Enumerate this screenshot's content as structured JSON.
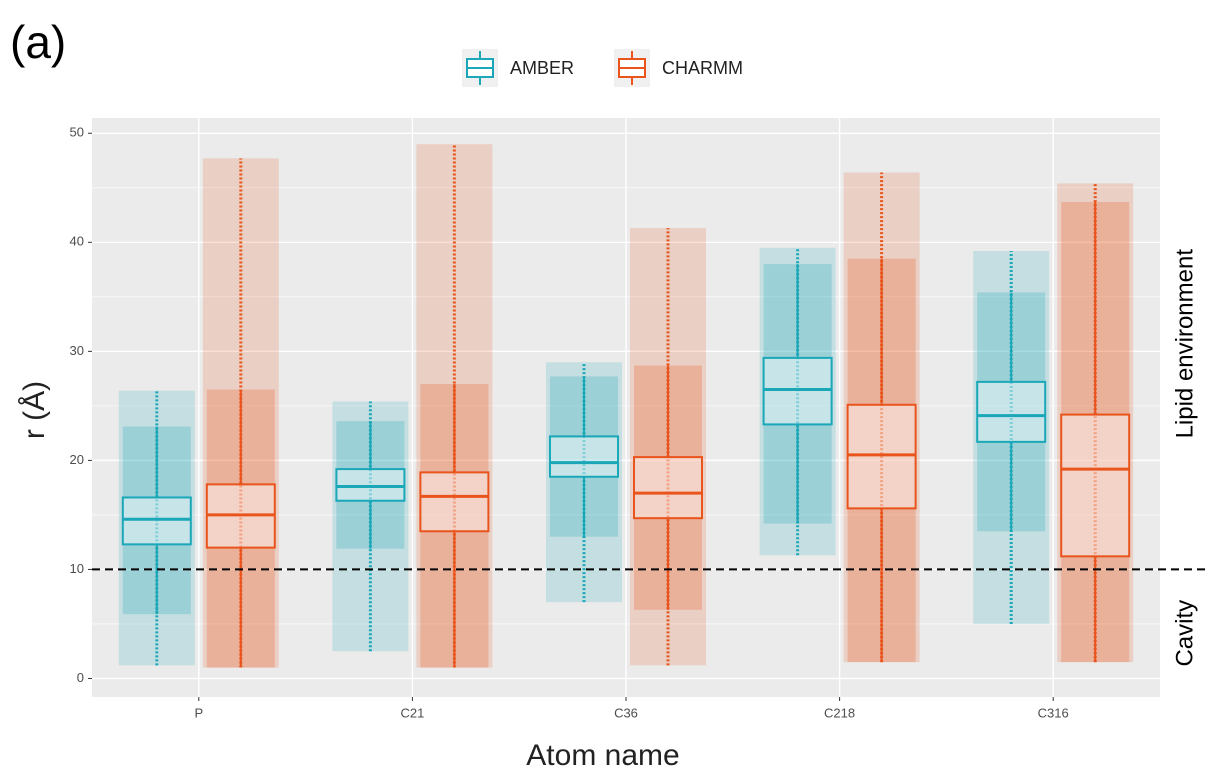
{
  "chart_data": {
    "type": "box",
    "panel_label": "(a)",
    "x_label": "Atom name",
    "y_label": "r (Å)",
    "categories": [
      "P",
      "C21",
      "C36",
      "C218",
      "C316"
    ],
    "series": [
      {
        "name": "AMBER",
        "color": "#1aa7b8",
        "boxes": [
          {
            "min": 1.2,
            "low": 5.9,
            "q1": 12.3,
            "median": 14.6,
            "q3": 16.6,
            "high": 23.1,
            "max": 26.4
          },
          {
            "min": 2.5,
            "low": 11.9,
            "q1": 16.3,
            "median": 17.6,
            "q3": 19.2,
            "high": 23.6,
            "max": 25.4
          },
          {
            "min": 7.0,
            "low": 13.0,
            "q1": 18.5,
            "median": 19.8,
            "q3": 22.2,
            "high": 27.7,
            "max": 29.0
          },
          {
            "min": 11.3,
            "low": 14.2,
            "q1": 23.3,
            "median": 26.5,
            "q3": 29.4,
            "high": 38.0,
            "max": 39.5
          },
          {
            "min": 5.0,
            "low": 13.5,
            "q1": 21.7,
            "median": 24.1,
            "q3": 27.2,
            "high": 35.4,
            "max": 39.2
          }
        ]
      },
      {
        "name": "CHARMM",
        "color": "#e8541c",
        "boxes": [
          {
            "min": 1.0,
            "low": 1.0,
            "q1": 12.0,
            "median": 15.0,
            "q3": 17.8,
            "high": 26.5,
            "max": 47.7
          },
          {
            "min": 1.0,
            "low": 1.0,
            "q1": 13.5,
            "median": 16.7,
            "q3": 18.9,
            "high": 27.0,
            "max": 49.0
          },
          {
            "min": 1.2,
            "low": 6.3,
            "q1": 14.7,
            "median": 17.0,
            "q3": 20.3,
            "high": 28.7,
            "max": 41.3
          },
          {
            "min": 1.5,
            "low": 1.5,
            "q1": 15.6,
            "median": 20.5,
            "q3": 25.1,
            "high": 38.5,
            "max": 46.4
          },
          {
            "min": 1.5,
            "low": 1.5,
            "q1": 11.2,
            "median": 19.2,
            "q3": 24.2,
            "high": 43.7,
            "max": 45.4
          }
        ]
      }
    ],
    "ylim": [
      -1.7,
      51.4
    ],
    "yticks": [
      0,
      10,
      20,
      30,
      40,
      50
    ],
    "grid": true,
    "hline": 10,
    "regions": [
      {
        "label": "Lipid environment",
        "from": 10,
        "to": 51.4
      },
      {
        "label": "Cavity",
        "from": -1.7,
        "to": 10
      }
    ],
    "legend": "top"
  }
}
